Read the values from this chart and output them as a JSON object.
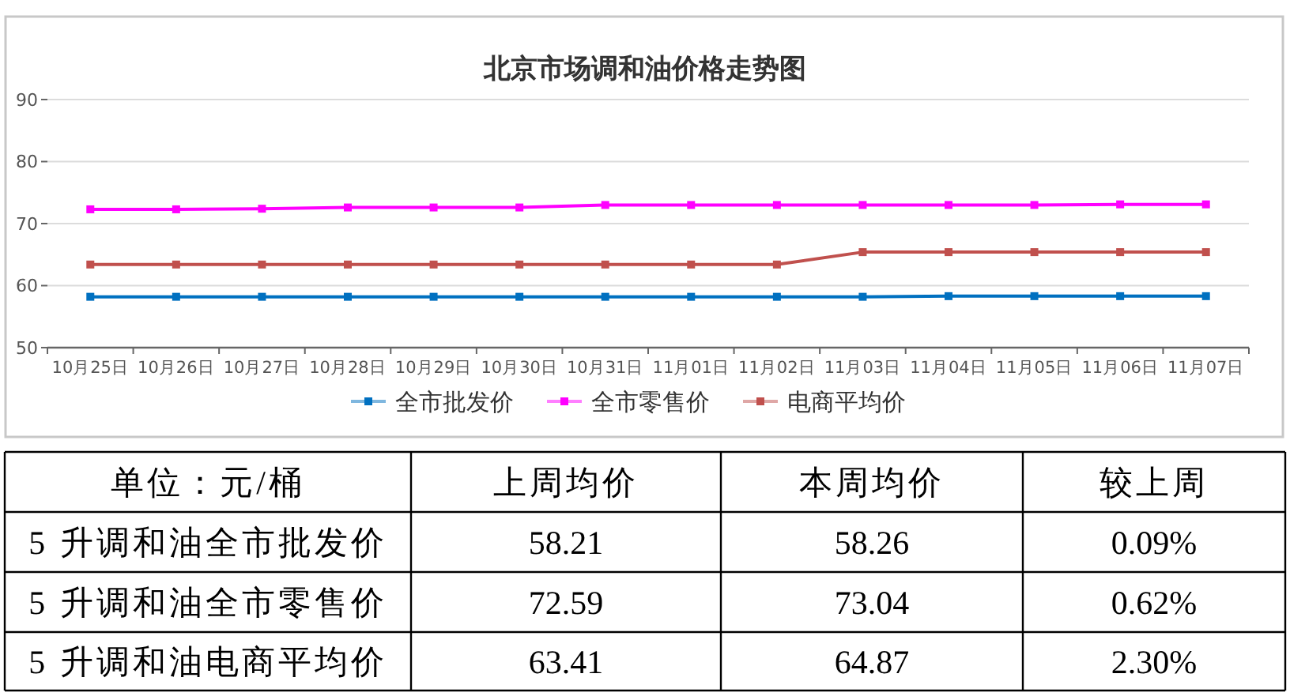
{
  "chart_data": [
    {
      "type": "line",
      "title": "北京市场调和油价格走势图",
      "categories": [
        "10月25日",
        "10月26日",
        "10月27日",
        "10月28日",
        "10月29日",
        "10月30日",
        "10月31日",
        "11月01日",
        "11月02日",
        "11月03日",
        "11月04日",
        "11月05日",
        "11月06日",
        "11月07日"
      ],
      "series": [
        {
          "name": "全市批发价",
          "color": "#0070c0",
          "values": [
            58.2,
            58.2,
            58.2,
            58.2,
            58.2,
            58.2,
            58.2,
            58.2,
            58.2,
            58.2,
            58.3,
            58.3,
            58.3,
            58.3
          ]
        },
        {
          "name": "全市零售价",
          "color": "#ff00ff",
          "values": [
            72.3,
            72.3,
            72.4,
            72.6,
            72.6,
            72.6,
            73.0,
            73.0,
            73.0,
            73.0,
            73.0,
            73.0,
            73.1,
            73.1
          ]
        },
        {
          "name": "电商平均价",
          "color": "#c0504d",
          "values": [
            63.4,
            63.4,
            63.4,
            63.4,
            63.4,
            63.4,
            63.4,
            63.4,
            63.4,
            65.4,
            65.4,
            65.4,
            65.4,
            65.4
          ]
        }
      ],
      "ylim": [
        50,
        90
      ],
      "yticks": [
        50,
        60,
        70,
        80,
        90
      ],
      "grid": "y",
      "legend": "bottom",
      "marker": "square"
    },
    {
      "type": "other",
      "ylabel": "单位：元/桶",
      "categories": [
        "上周均价",
        "本周均价",
        "较上周"
      ],
      "y_categories": [
        "5 升调和油全市批发价",
        "5 升调和油全市零售价",
        "5 升调和油电商平均价"
      ],
      "cell_labels": [
        [
          "58.21",
          "58.26",
          "0.09%"
        ],
        [
          "72.59",
          "73.04",
          "0.62%"
        ],
        [
          "63.41",
          "64.87",
          "2.30%"
        ]
      ]
    }
  ]
}
